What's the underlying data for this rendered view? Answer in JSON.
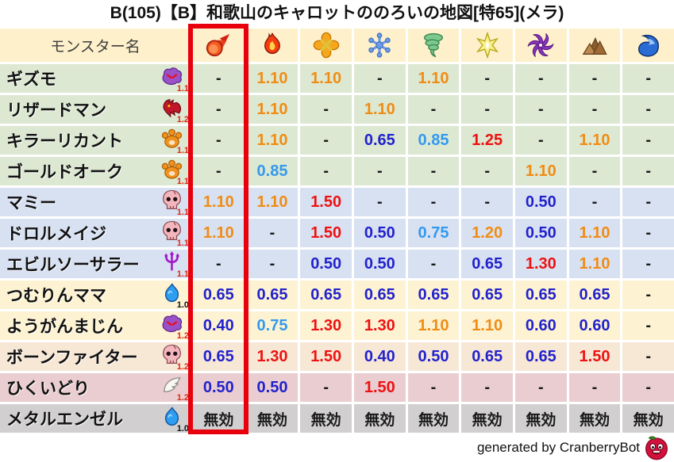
{
  "title": "B(105)【B】和歌山のキャロットののろいの地図[特65](メラ)",
  "footer": {
    "credit": "generated by CranberryBot",
    "icon": "cranberrybot-icon"
  },
  "table": {
    "name_header": "モンスター名",
    "element_columns": [
      {
        "icon": "fireball-icon",
        "highlighted": true
      },
      {
        "icon": "flame-icon",
        "highlighted": false
      },
      {
        "icon": "cross-burst-icon",
        "highlighted": false
      },
      {
        "icon": "snowflake-icon",
        "highlighted": false
      },
      {
        "icon": "tornado-icon",
        "highlighted": false
      },
      {
        "icon": "sparkle-star-icon",
        "highlighted": false
      },
      {
        "icon": "pinwheel-icon",
        "highlighted": false
      },
      {
        "icon": "mountain-icon",
        "highlighted": false
      },
      {
        "icon": "wave-icon",
        "highlighted": false
      }
    ],
    "rows": [
      {
        "name": "ギズモ",
        "icon": "ghost-icon",
        "badge": "1.1",
        "badge_color": "red",
        "group": "green",
        "values": [
          "-",
          "1.10",
          "1.10",
          "-",
          "1.10",
          "-",
          "-",
          "-",
          "-"
        ]
      },
      {
        "name": "リザードマン",
        "icon": "dragon-icon",
        "badge": "1.2",
        "badge_color": "red",
        "group": "green",
        "values": [
          "-",
          "1.10",
          "-",
          "1.10",
          "-",
          "-",
          "-",
          "-",
          "-"
        ]
      },
      {
        "name": "キラーリカント",
        "icon": "paw-icon",
        "badge": "1.1",
        "badge_color": "red",
        "group": "green",
        "values": [
          "-",
          "1.10",
          "-",
          "0.65",
          "0.85",
          "1.25",
          "-",
          "1.10",
          "-"
        ]
      },
      {
        "name": "ゴールドオーク",
        "icon": "paw-icon",
        "badge": "1.1",
        "badge_color": "red",
        "group": "green",
        "values": [
          "-",
          "0.85",
          "-",
          "-",
          "-",
          "-",
          "1.10",
          "-",
          "-"
        ]
      },
      {
        "name": "マミー",
        "icon": "skull-icon",
        "badge": "1.1",
        "badge_color": "red",
        "group": "blue",
        "values": [
          "1.10",
          "1.10",
          "1.50",
          "-",
          "-",
          "-",
          "0.50",
          "-",
          "-"
        ]
      },
      {
        "name": "ドロルメイジ",
        "icon": "skull-icon",
        "badge": "1.1",
        "badge_color": "red",
        "group": "blue",
        "values": [
          "1.10",
          "-",
          "1.50",
          "0.50",
          "0.75",
          "1.20",
          "0.50",
          "1.10",
          "-"
        ]
      },
      {
        "name": "エビルソーサラー",
        "icon": "trident-icon",
        "badge": "1.1",
        "badge_color": "red",
        "group": "blue",
        "values": [
          "-",
          "-",
          "0.50",
          "0.50",
          "-",
          "0.65",
          "1.30",
          "1.10",
          "-"
        ]
      },
      {
        "name": "つむりんママ",
        "icon": "slime-icon",
        "badge": "1.0",
        "badge_color": "black",
        "group": "cream",
        "values": [
          "0.65",
          "0.65",
          "0.65",
          "0.65",
          "0.65",
          "0.65",
          "0.65",
          "0.65",
          "-"
        ]
      },
      {
        "name": "ようがんまじん",
        "icon": "ghost-icon",
        "badge": "1.2",
        "badge_color": "red",
        "group": "cream",
        "values": [
          "0.40",
          "0.75",
          "1.30",
          "1.30",
          "1.10",
          "1.10",
          "0.60",
          "0.60",
          "-"
        ]
      },
      {
        "name": "ボーンファイター",
        "icon": "skull-icon",
        "badge": "1.2",
        "badge_color": "red",
        "group": "tan",
        "values": [
          "0.65",
          "1.30",
          "1.50",
          "0.40",
          "0.50",
          "0.65",
          "0.65",
          "1.50",
          "-"
        ]
      },
      {
        "name": "ひくいどり",
        "icon": "wing-icon",
        "badge": "1.2",
        "badge_color": "red",
        "group": "pink",
        "values": [
          "0.50",
          "0.50",
          "-",
          "1.50",
          "-",
          "-",
          "-",
          "-",
          "-"
        ]
      },
      {
        "name": "メタルエンゼル",
        "icon": "slime-icon",
        "badge": "1.0",
        "badge_color": "black",
        "group": "gray",
        "values": [
          "無効",
          "無効",
          "無効",
          "無効",
          "無効",
          "無効",
          "無効",
          "無効",
          "無効"
        ]
      }
    ],
    "immune_label": "無効"
  },
  "colors": {
    "header_bg": "#fdf0cb",
    "row_green": "#dce8d2",
    "row_blue": "#d8e1f2",
    "row_cream": "#fdf3d3",
    "row_tan": "#f7e8d6",
    "row_pink": "#eacdd0",
    "row_gray": "#d1cfcf",
    "highlight_red": "#e8000d",
    "value_orange": "#f08c14",
    "value_red": "#ee1111",
    "value_dark_blue": "#2222cc",
    "value_light_blue": "#3399ee",
    "value_neutral": "#1a1a1a"
  }
}
